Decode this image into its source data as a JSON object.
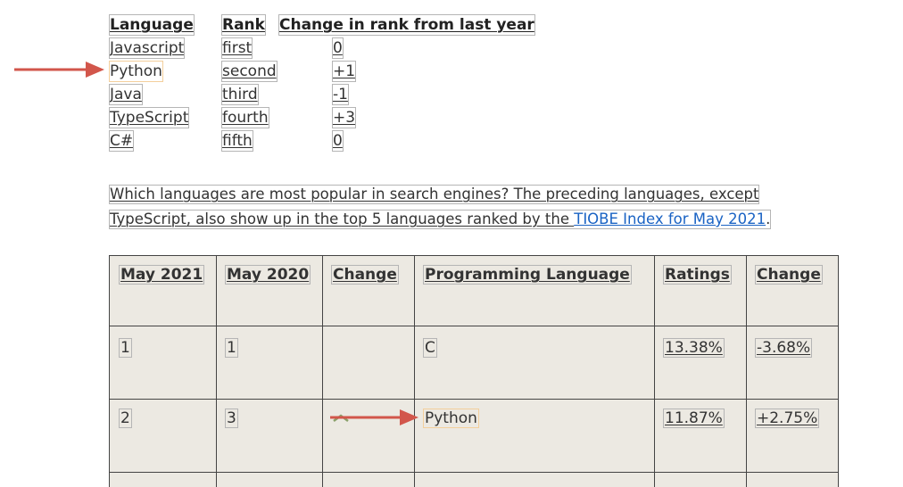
{
  "rank_table": {
    "headers": [
      "Language",
      "Rank",
      "Change in rank from last year"
    ],
    "rows": [
      {
        "language": "Javascript",
        "rank": "first",
        "change": "0"
      },
      {
        "language": "Python",
        "rank": "second",
        "change": "+1"
      },
      {
        "language": "Java",
        "rank": "third",
        "change": "-1"
      },
      {
        "language": "TypeScript",
        "rank": "fourth",
        "change": "+3"
      },
      {
        "language": "C#",
        "rank": "fifth",
        "change": "0"
      }
    ]
  },
  "paragraph": {
    "line1": "Which languages are most popular in search engines? The preceding languages, except",
    "line2_prefix": "TypeScript,  also show up in the top 5 languages ranked by the ",
    "link_text": "TIOBE Index for May 2021",
    "line2_suffix": "."
  },
  "tiobe_table": {
    "headers": [
      "May 2021",
      "May 2020",
      "Change",
      "Programming Language",
      "Ratings",
      "Change"
    ],
    "rows": [
      {
        "may2021": "1",
        "may2020": "1",
        "change": "",
        "language": "C",
        "ratings": "13.38%",
        "change_pct": "-3.68%"
      },
      {
        "may2021": "2",
        "may2020": "3",
        "change": "",
        "language": "Python",
        "ratings": "11.87%",
        "change_pct": "+2.75%"
      }
    ]
  },
  "colors": {
    "arrow": "#d2564b",
    "highlight": "#f3cf9c",
    "link": "#1a63c4",
    "table_bg": "#ece9e2"
  }
}
